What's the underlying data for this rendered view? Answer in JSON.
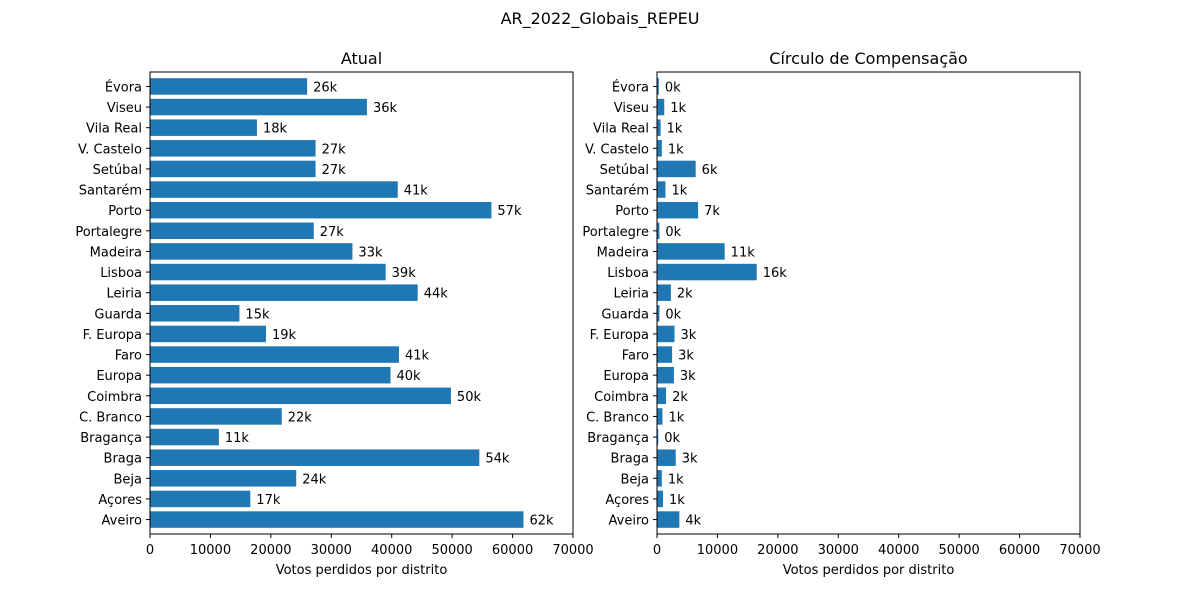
{
  "figure": {
    "title": "AR_2022_Globais_REPEU"
  },
  "chart_data": [
    {
      "type": "bar",
      "orientation": "horizontal",
      "title": "Atual",
      "xlabel": "Votos perdidos por distrito",
      "ylabel": "",
      "xlim": [
        0,
        70000
      ],
      "xticks": [
        0,
        10000,
        20000,
        30000,
        40000,
        50000,
        60000,
        70000
      ],
      "grid": false,
      "bar_color": "#1f77b4",
      "categories": [
        "Aveiro",
        "Açores",
        "Beja",
        "Braga",
        "Bragança",
        "C. Branco",
        "Coimbra",
        "Europa",
        "Faro",
        "F. Europa",
        "Guarda",
        "Leiria",
        "Lisboa",
        "Madeira",
        "Portalegre",
        "Porto",
        "Santarém",
        "Setúbal",
        "V. Castelo",
        "Vila Real",
        "Viseu",
        "Évora"
      ],
      "values": [
        61800,
        16600,
        24200,
        54500,
        11400,
        21800,
        49800,
        39800,
        41200,
        19200,
        14800,
        44300,
        39000,
        33500,
        27100,
        56500,
        41000,
        27400,
        27400,
        17700,
        35900,
        26000
      ],
      "data_labels": [
        "62k",
        "17k",
        "24k",
        "54k",
        "11k",
        "22k",
        "50k",
        "40k",
        "41k",
        "19k",
        "15k",
        "44k",
        "39k",
        "33k",
        "27k",
        "57k",
        "41k",
        "27k",
        "27k",
        "18k",
        "36k",
        "26k"
      ]
    },
    {
      "type": "bar",
      "orientation": "horizontal",
      "title": "Círculo de Compensação",
      "xlabel": "Votos perdidos por distrito",
      "ylabel": "",
      "xlim": [
        0,
        70000
      ],
      "xticks": [
        0,
        10000,
        20000,
        30000,
        40000,
        50000,
        60000,
        70000
      ],
      "grid": false,
      "bar_color": "#1f77b4",
      "categories": [
        "Aveiro",
        "Açores",
        "Beja",
        "Braga",
        "Bragança",
        "C. Branco",
        "Coimbra",
        "Europa",
        "Faro",
        "F. Europa",
        "Guarda",
        "Leiria",
        "Lisboa",
        "Madeira",
        "Portalegre",
        "Porto",
        "Santarém",
        "Setúbal",
        "V. Castelo",
        "Vila Real",
        "Viseu",
        "Évora"
      ],
      "values": [
        3700,
        1000,
        800,
        3100,
        200,
        900,
        1500,
        2800,
        2500,
        2900,
        400,
        2300,
        16500,
        11200,
        400,
        6800,
        1400,
        6400,
        800,
        600,
        1200,
        300
      ],
      "data_labels": [
        "4k",
        "1k",
        "1k",
        "3k",
        "0k",
        "1k",
        "2k",
        "3k",
        "3k",
        "3k",
        "0k",
        "2k",
        "16k",
        "11k",
        "0k",
        "7k",
        "1k",
        "6k",
        "1k",
        "1k",
        "1k",
        "0k"
      ]
    }
  ]
}
